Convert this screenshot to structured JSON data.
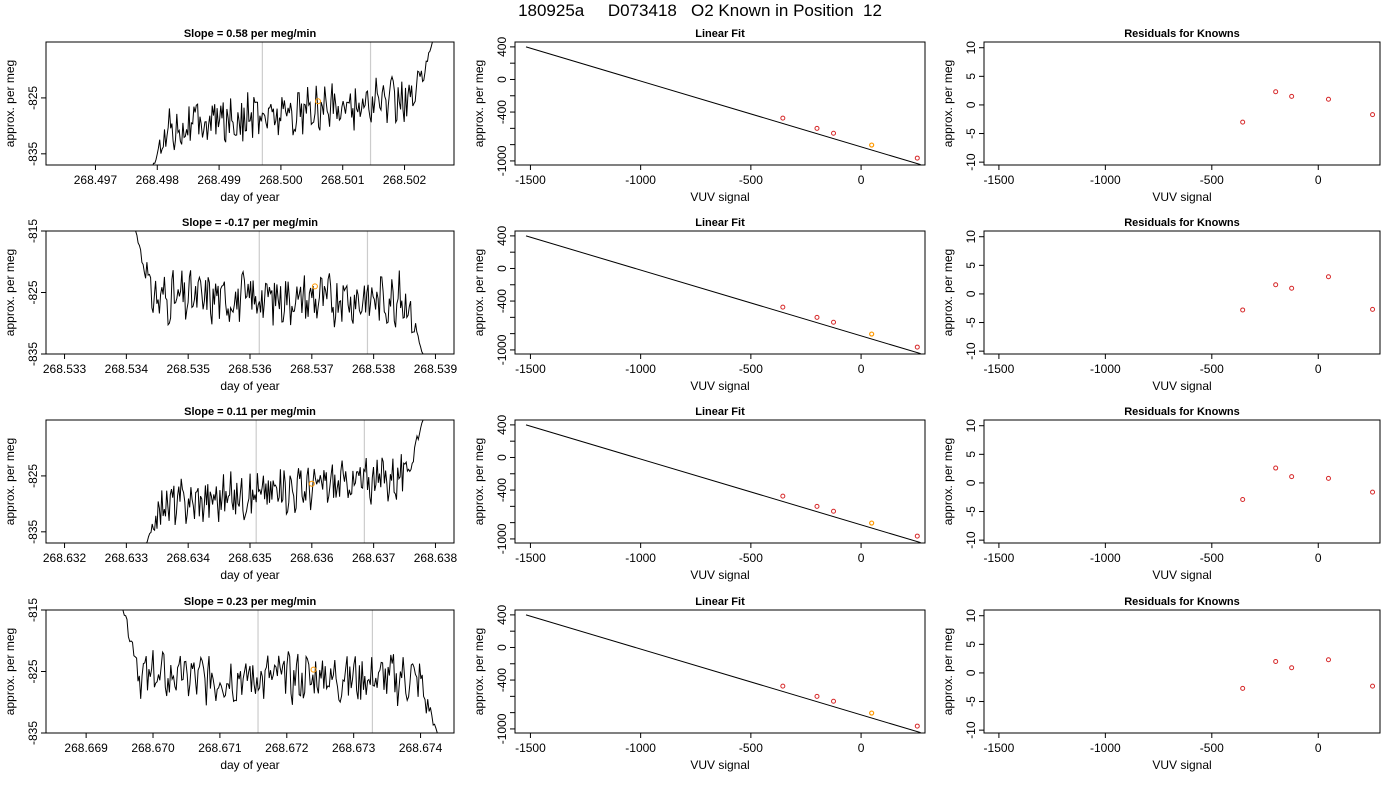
{
  "page_title": "180925a     D073418   O2 Known in Position  12",
  "colors": {
    "trace": "#000000",
    "vline": "#cccccc",
    "known_point": "#ff9900",
    "fit_point": "#d62728",
    "fit_line": "#000000"
  },
  "chart_data": [
    {
      "type": "line",
      "panel": "time-series",
      "row": 1,
      "title": "Slope =  0.58  per meg/min",
      "xlabel": "day of year",
      "ylabel": "approx. per meg",
      "xlim": [
        268.4962,
        268.5028
      ],
      "ylim": [
        -837,
        -815
      ],
      "xticks": [
        "268.497",
        "268.498",
        "268.499",
        "268.500",
        "268.501",
        "268.502"
      ],
      "yticks": [
        "-825",
        "-835"
      ],
      "vlines": [
        268.4997,
        268.50145
      ],
      "trace_start": [
        268.4979,
        -838
      ],
      "trace_end": [
        268.50245,
        -815
      ],
      "known": {
        "x": 268.5006,
        "y": -825.6
      }
    },
    {
      "type": "line",
      "panel": "time-series",
      "row": 2,
      "title": "Slope =  -0.17  per meg/min",
      "xlabel": "day of year",
      "ylabel": "approx. per meg",
      "xlim": [
        268.5327,
        268.5393
      ],
      "ylim": [
        -835,
        -815
      ],
      "xticks": [
        "268.533",
        "268.534",
        "268.535",
        "268.536",
        "268.537",
        "268.538",
        "268.539"
      ],
      "yticks": [
        "-815",
        "-825",
        "-835"
      ],
      "vlines": [
        268.53615,
        268.5379
      ],
      "trace_start": [
        268.53415,
        -815
      ],
      "trace_end": [
        268.5388,
        -835
      ],
      "known": {
        "x": 268.53705,
        "y": -824.0
      }
    },
    {
      "type": "line",
      "panel": "time-series",
      "row": 3,
      "title": "Slope =  0.11  per meg/min",
      "xlabel": "day of year",
      "ylabel": "approx. per meg",
      "xlim": [
        268.6317,
        268.6383
      ],
      "ylim": [
        -837,
        -815
      ],
      "xticks": [
        "268.632",
        "268.633",
        "268.634",
        "268.635",
        "268.636",
        "268.637",
        "268.638"
      ],
      "yticks": [
        "-825",
        "-835"
      ],
      "vlines": [
        268.6351,
        268.63685
      ],
      "trace_start": [
        268.6333,
        -838
      ],
      "trace_end": [
        268.6378,
        -815
      ],
      "known": {
        "x": 268.636,
        "y": -826.4
      }
    },
    {
      "type": "line",
      "panel": "time-series",
      "row": 4,
      "title": "Slope =  0.23  per meg/min",
      "xlabel": "day of year",
      "ylabel": "approx. per meg",
      "xlim": [
        268.6684,
        268.6745
      ],
      "ylim": [
        -835,
        -815
      ],
      "xticks": [
        "268.669",
        "268.670",
        "268.671",
        "268.672",
        "268.673",
        "268.674"
      ],
      "yticks": [
        "-815",
        "-825",
        "-835"
      ],
      "vlines": [
        268.67157,
        268.67328
      ],
      "trace_start": [
        268.66955,
        -815
      ],
      "trace_end": [
        268.67425,
        -835
      ],
      "known": {
        "x": 268.6724,
        "y": -824.7
      }
    },
    {
      "type": "scatter",
      "panel": "linear-fit",
      "row": 1,
      "title": "Linear Fit",
      "xlabel": "VUV signal",
      "ylabel": "approx. per meg",
      "xlim": [
        -1570,
        290
      ],
      "ylim": [
        -1050,
        460
      ],
      "xticks": [
        -1500,
        -1000,
        -500,
        0
      ],
      "yticks": [
        400,
        0,
        -400,
        -1000
      ],
      "yticks_minor": [
        200,
        -200,
        -600,
        -800
      ],
      "line": {
        "x": [
          -1520,
          270
        ],
        "y": [
          400,
          -1045
        ]
      },
      "points": {
        "x": [
          -355,
          -200,
          -125,
          255
        ],
        "y": [
          -475,
          -600,
          -660,
          -965
        ]
      },
      "known": {
        "x": 48,
        "y": -805
      }
    },
    {
      "type": "scatter",
      "panel": "linear-fit",
      "row": 2,
      "title": "Linear Fit",
      "xlabel": "VUV signal",
      "ylabel": "approx. per meg",
      "xlim": [
        -1570,
        290
      ],
      "ylim": [
        -1050,
        460
      ],
      "xticks": [
        -1500,
        -1000,
        -500,
        0
      ],
      "yticks": [
        400,
        0,
        -400,
        -1000
      ],
      "yticks_minor": [
        200,
        -200,
        -600,
        -800
      ],
      "line": {
        "x": [
          -1520,
          270
        ],
        "y": [
          400,
          -1045
        ]
      },
      "points": {
        "x": [
          -355,
          -200,
          -125,
          255
        ],
        "y": [
          -475,
          -600,
          -660,
          -965
        ]
      },
      "known": {
        "x": 48,
        "y": -805
      }
    },
    {
      "type": "scatter",
      "panel": "linear-fit",
      "row": 3,
      "title": "Linear Fit",
      "xlabel": "VUV signal",
      "ylabel": "approx. per meg",
      "xlim": [
        -1570,
        290
      ],
      "ylim": [
        -1050,
        460
      ],
      "xticks": [
        -1500,
        -1000,
        -500,
        0
      ],
      "yticks": [
        400,
        0,
        -400,
        -1000
      ],
      "yticks_minor": [
        200,
        -200,
        -600,
        -800
      ],
      "line": {
        "x": [
          -1520,
          270
        ],
        "y": [
          400,
          -1045
        ]
      },
      "points": {
        "x": [
          -355,
          -200,
          -125,
          255
        ],
        "y": [
          -475,
          -600,
          -660,
          -965
        ]
      },
      "known": {
        "x": 48,
        "y": -805
      }
    },
    {
      "type": "scatter",
      "panel": "linear-fit",
      "row": 4,
      "title": "Linear Fit",
      "xlabel": "VUV signal",
      "ylabel": "approx. per meg",
      "xlim": [
        -1570,
        290
      ],
      "ylim": [
        -1050,
        460
      ],
      "xticks": [
        -1500,
        -1000,
        -500,
        0
      ],
      "yticks": [
        400,
        0,
        -400,
        -1000
      ],
      "yticks_minor": [
        200,
        -200,
        -600,
        -800
      ],
      "line": {
        "x": [
          -1520,
          270
        ],
        "y": [
          400,
          -1045
        ]
      },
      "points": {
        "x": [
          -355,
          -200,
          -125,
          255
        ],
        "y": [
          -475,
          -600,
          -660,
          -965
        ]
      },
      "known": {
        "x": 48,
        "y": -805
      }
    },
    {
      "type": "scatter",
      "panel": "residuals",
      "row": 1,
      "title": "Residuals for Knowns",
      "xlabel": "VUV signal",
      "ylabel": "approx. per meg",
      "xlim": [
        -1570,
        290
      ],
      "ylim": [
        -10.5,
        11
      ],
      "xticks": [
        -1500,
        -1000,
        -500,
        0
      ],
      "yticks": [
        10,
        5,
        0,
        -5,
        -10
      ],
      "points": {
        "x": [
          -355,
          -200,
          -125,
          48,
          255
        ],
        "y": [
          -3,
          2.3,
          1.5,
          1.0,
          -1.7
        ]
      }
    },
    {
      "type": "scatter",
      "panel": "residuals",
      "row": 2,
      "title": "Residuals for Knowns",
      "xlabel": "VUV signal",
      "ylabel": "approx. per meg",
      "xlim": [
        -1570,
        290
      ],
      "ylim": [
        -10.5,
        11
      ],
      "xticks": [
        -1500,
        -1000,
        -500,
        0
      ],
      "yticks": [
        10,
        5,
        0,
        -5,
        -10
      ],
      "points": {
        "x": [
          -355,
          -200,
          -125,
          48,
          255
        ],
        "y": [
          -2.8,
          1.6,
          1.0,
          3.0,
          -2.7
        ]
      }
    },
    {
      "type": "scatter",
      "panel": "residuals",
      "row": 3,
      "title": "Residuals for Knowns",
      "xlabel": "VUV signal",
      "ylabel": "approx. per meg",
      "xlim": [
        -1570,
        290
      ],
      "ylim": [
        -10.5,
        11
      ],
      "xticks": [
        -1500,
        -1000,
        -500,
        0
      ],
      "yticks": [
        10,
        5,
        0,
        -5,
        -10
      ],
      "points": {
        "x": [
          -355,
          -200,
          -125,
          48,
          255
        ],
        "y": [
          -2.9,
          2.6,
          1.1,
          0.8,
          -1.6
        ]
      }
    },
    {
      "type": "scatter",
      "panel": "residuals",
      "row": 4,
      "title": "Residuals for Knowns",
      "xlabel": "VUV signal",
      "ylabel": "approx. per meg",
      "xlim": [
        -1570,
        290
      ],
      "ylim": [
        -10.5,
        11
      ],
      "xticks": [
        -1500,
        -1000,
        -500,
        0
      ],
      "yticks": [
        10,
        5,
        0,
        -5,
        -10
      ],
      "points": {
        "x": [
          -355,
          -200,
          -125,
          48,
          255
        ],
        "y": [
          -2.7,
          2.0,
          0.9,
          2.3,
          -2.3
        ]
      }
    }
  ]
}
